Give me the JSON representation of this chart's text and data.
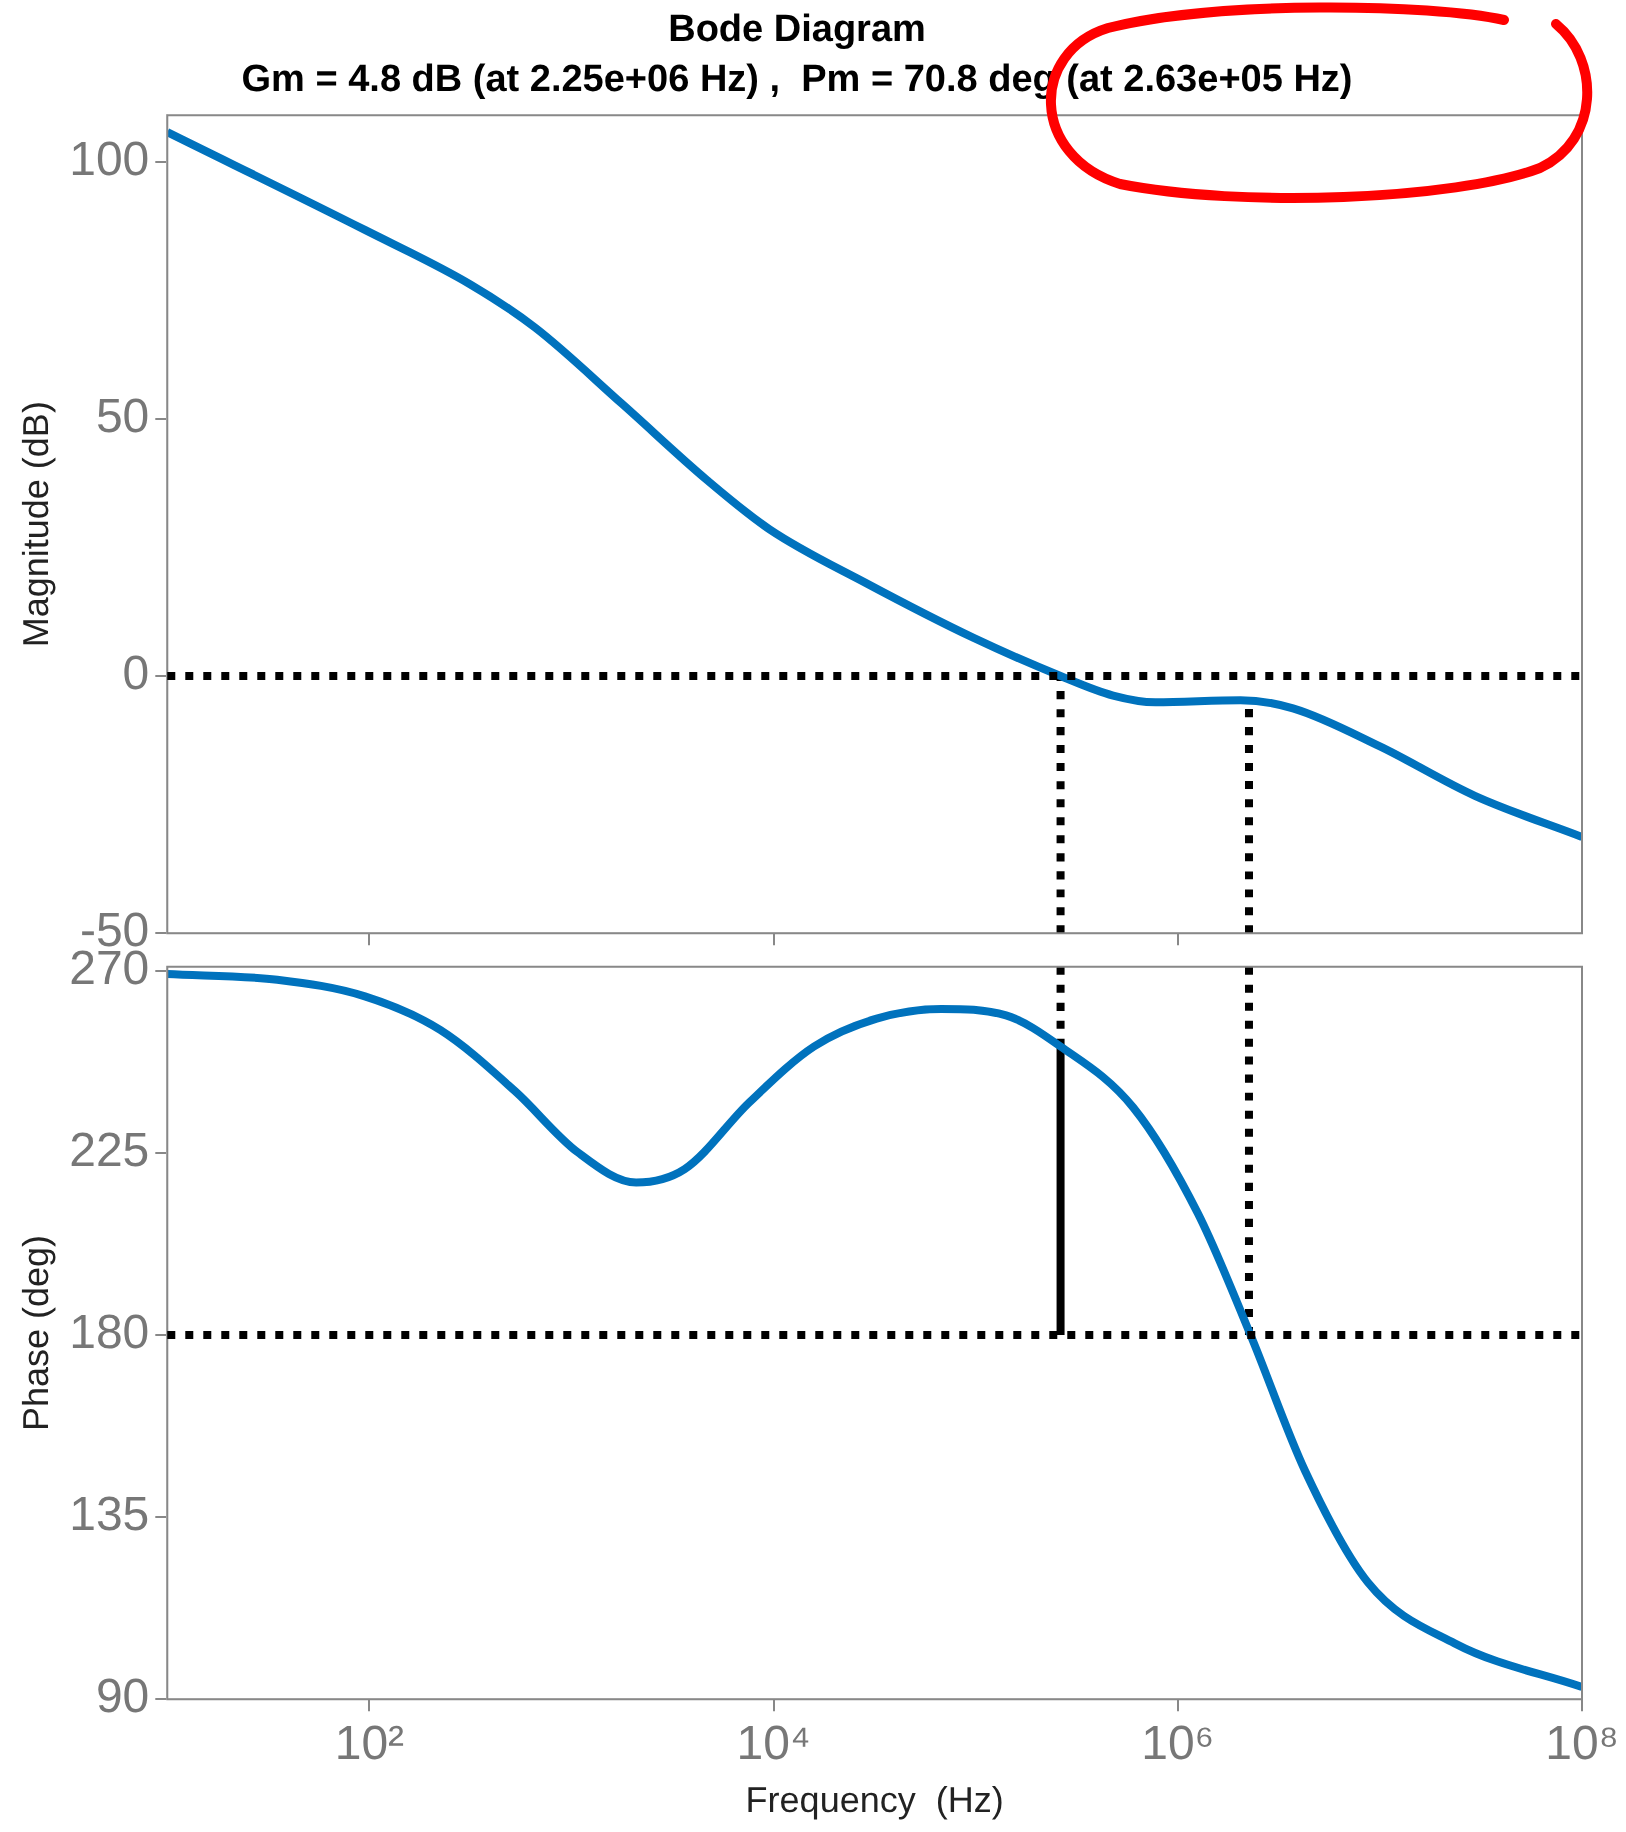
{
  "chart_data": [
    {
      "type": "line",
      "title": "Bode Diagram",
      "subtitle": "Gm = 4.8 dB (at 2.25e+06 Hz) ,  Pm = 70.8 deg (at 2.63e+05 Hz)",
      "ylabel": "Magnitude (dB)",
      "log": "x",
      "xlim": [
        10,
        100000000
      ],
      "xticks": [
        {
          "value": 100,
          "label": null
        },
        {
          "value": 10000,
          "label": null
        },
        {
          "value": 1000000,
          "label": null
        }
      ],
      "ylim": [
        -50,
        109
      ],
      "yticks": [
        -50,
        0,
        50,
        100
      ],
      "tick_labels": "y",
      "ref_lines": [
        {
          "axis": "y",
          "value": 0,
          "color": "#000000",
          "line_style": "dotted"
        }
      ],
      "series": [
        {
          "color": "#0072bd",
          "x": [
            10,
            95,
            316,
            661,
            1778,
            4677,
            9550,
            28840,
            97700,
            263000,
            478600,
            776200,
            2042000,
            3715000,
            10000000,
            29510000,
            100000000
          ],
          "values": [
            105.7,
            86.7,
            76.1,
            67.7,
            52.9,
            38.1,
            28.5,
            18.0,
            7.4,
            0,
            -3.8,
            -5.1,
            -4.7,
            -6.3,
            -13.7,
            -23.3,
            -31.3
          ]
        },
        {
          "color": "#000000",
          "line_style": "dotted",
          "x": [
            263000,
            263000
          ],
          "values": [
            -50,
            0
          ]
        },
        {
          "color": "#000000",
          "line_style": "dotted",
          "x": [
            2250000,
            2250000
          ],
          "values": [
            -50,
            -4.8
          ]
        }
      ]
    },
    {
      "type": "line",
      "xlabel": "Frequency  (Hz)",
      "ylabel": "Phase (deg)",
      "log": "x",
      "xlim": [
        10,
        100000000
      ],
      "xticks": [
        {
          "value": 100,
          "label": "10²"
        },
        {
          "value": 10000,
          "label": "10⁴"
        },
        {
          "value": 1000000,
          "label": "10⁶"
        },
        {
          "value": 100000000,
          "label": "10⁸"
        }
      ],
      "ylim": [
        90,
        271
      ],
      "yticks": [
        90,
        135,
        180,
        225,
        270
      ],
      "ref_lines": [
        {
          "axis": "y",
          "value": 180,
          "color": "#000000",
          "line_style": "dotted"
        }
      ],
      "series": [
        {
          "color": "#0072bd",
          "x": [
            10,
            35,
            95,
            224,
            525,
            1072,
            2089,
            3631,
            7586,
            15850,
            32360,
            67610,
            141300,
            263000,
            602600,
            1259000,
            2291000,
            4266000,
            8710000,
            23440000,
            100000000
          ],
          "values": [
            269.2,
            267.8,
            263.7,
            255.4,
            240.3,
            225.2,
            217.7,
            221,
            237.5,
            251.3,
            258.2,
            260.6,
            259,
            251.3,
            236.2,
            210,
            180,
            146.4,
            118.9,
            103.8,
            93
          ]
        },
        {
          "color": "#000000",
          "line_style": "dotted",
          "x": [
            263000,
            263000
          ],
          "values": [
            271,
            251.3
          ]
        },
        {
          "color": "#000000",
          "line_style": "solid",
          "x": [
            263000,
            263000
          ],
          "values": [
            180,
            251.3
          ]
        },
        {
          "color": "#000000",
          "line_style": "dotted",
          "x": [
            2250000,
            2250000
          ],
          "values": [
            271,
            180
          ]
        }
      ]
    }
  ]
}
